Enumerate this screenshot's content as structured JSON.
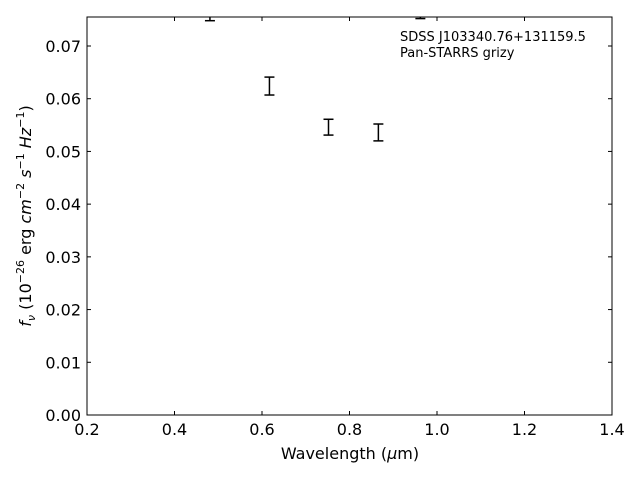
{
  "chart_data": {
    "type": "scatter",
    "xlabel": {
      "prefix": "Wavelength (",
      "mu": "μ",
      "suffix": "m)"
    },
    "ylabel": {
      "f": "f",
      "nu": "ν",
      "open": " (10",
      "exp26": "−26",
      "erg": " erg ",
      "cm": "cm",
      "expm2": "−2",
      "s": " s",
      "expm1": "−1",
      "hz": " Hz",
      "expm1b": "−1",
      "close": ")"
    },
    "xlim": [
      0.2,
      1.4
    ],
    "ylim": [
      0.0,
      0.0755
    ],
    "xticks": [
      0.2,
      0.4,
      0.6,
      0.8,
      1.0,
      1.2,
      1.4
    ],
    "xtick_labels": [
      "0.2",
      "0.4",
      "0.6",
      "0.8",
      "1.0",
      "1.2",
      "1.4"
    ],
    "yticks": [
      0.0,
      0.01,
      0.02,
      0.03,
      0.04,
      0.05,
      0.06,
      0.07
    ],
    "ytick_labels": [
      "0.00",
      "0.01",
      "0.02",
      "0.03",
      "0.04",
      "0.05",
      "0.06",
      "0.07"
    ],
    "annotation_lines": [
      "SDSS J103340.76+131159.5",
      "Pan-STARRS grizy"
    ],
    "points": [
      {
        "x": 0.481,
        "y": 0.0765,
        "yerr": 0.0017
      },
      {
        "x": 0.617,
        "y": 0.0624,
        "yerr": 0.0017
      },
      {
        "x": 0.752,
        "y": 0.0546,
        "yerr": 0.0015
      },
      {
        "x": 0.866,
        "y": 0.0536,
        "yerr": 0.0016
      },
      {
        "x": 0.962,
        "y": 0.077,
        "yerr": 0.0018
      }
    ],
    "grid": false,
    "legend": "none",
    "marker_color": "#000000"
  }
}
